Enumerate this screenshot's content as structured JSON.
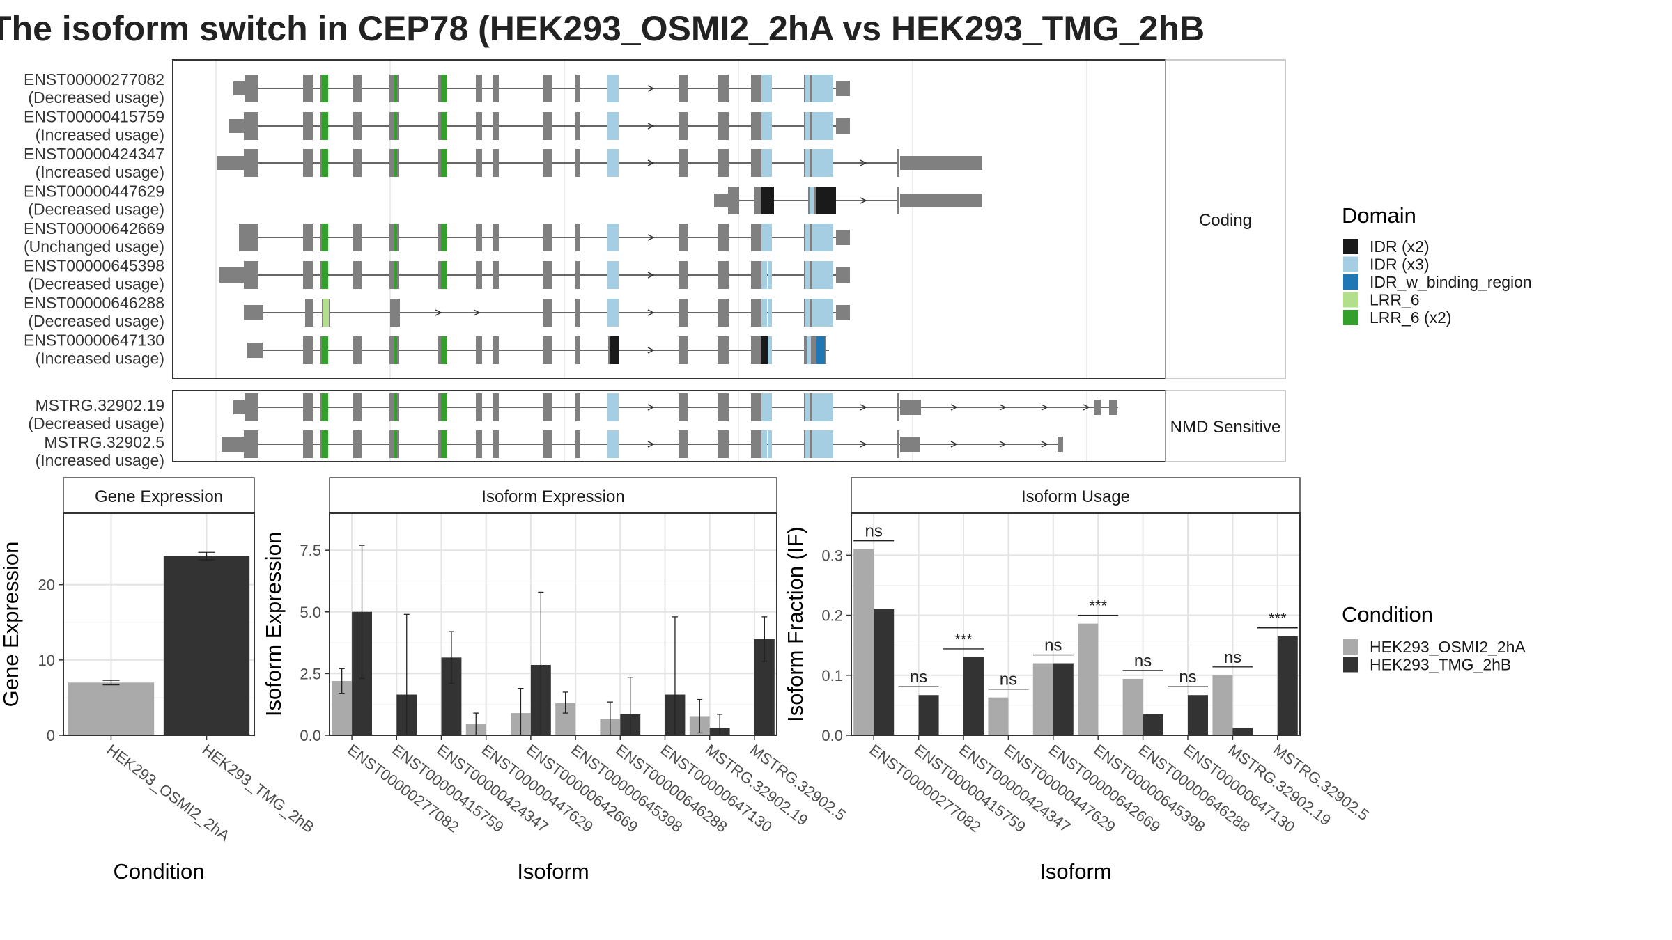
{
  "title": "The isoform switch in CEP78 (HEK293_OSMI2_2hA vs HEK293_TMG_2hB",
  "colors": {
    "cond1": "#aaaaaa",
    "cond2": "#333333",
    "exon": "#808080",
    "idr_x2": "#1a1a1a",
    "idr_x3": "#a6cee3",
    "idr_binding": "#1f78b4",
    "lrr6": "#b2df8a",
    "lrr6_x2": "#33a02c"
  },
  "transcripts": {
    "strip_coding": "Coding",
    "strip_nmd": "NMD Sensitive",
    "coding": [
      {
        "id": "ENST00000277082",
        "label": "(Decreased usage)"
      },
      {
        "id": "ENST00000415759",
        "label": "(Increased usage)"
      },
      {
        "id": "ENST00000424347",
        "label": "(Increased usage)"
      },
      {
        "id": "ENST00000447629",
        "label": "(Decreased usage)"
      },
      {
        "id": "ENST00000642669",
        "label": "(Unchanged usage)"
      },
      {
        "id": "ENST00000645398",
        "label": "(Decreased usage)"
      },
      {
        "id": "ENST00000646288",
        "label": "(Decreased usage)"
      },
      {
        "id": "ENST00000647130",
        "label": "(Increased usage)"
      }
    ],
    "nmd": [
      {
        "id": "MSTRG.32902.19",
        "label": "(Decreased usage)"
      },
      {
        "id": "MSTRG.32902.5",
        "label": "(Increased usage)"
      }
    ]
  },
  "domain_legend": {
    "title": "Domain",
    "items": [
      {
        "label": "IDR (x2)",
        "color_key": "idr_x2"
      },
      {
        "label": "IDR (x3)",
        "color_key": "idr_x3"
      },
      {
        "label": "IDR_w_binding_region",
        "color_key": "idr_binding"
      },
      {
        "label": "LRR_6",
        "color_key": "lrr6"
      },
      {
        "label": "LRR_6 (x2)",
        "color_key": "lrr6_x2"
      }
    ]
  },
  "condition_legend": {
    "title": "Condition",
    "items": [
      {
        "label": "HEK293_OSMI2_2hA",
        "color_key": "cond1"
      },
      {
        "label": "HEK293_TMG_2hB",
        "color_key": "cond2"
      }
    ]
  },
  "chart_data": [
    {
      "type": "bar",
      "title": "Gene Expression",
      "xlabel": "Condition",
      "ylabel": "Gene Expression",
      "categories": [
        "HEK293_OSMI2_2hA",
        "HEK293_TMG_2hB"
      ],
      "values": [
        7.0,
        23.8
      ],
      "errors": [
        [
          6.7,
          7.3
        ],
        [
          23.3,
          24.3
        ]
      ],
      "ylim": [
        0,
        29.5
      ],
      "yticks": [
        0,
        10,
        20
      ],
      "grid": true
    },
    {
      "type": "bar",
      "title": "Isoform Expression",
      "xlabel": "Isoform",
      "ylabel": "Isoform Expression",
      "categories": [
        "ENST00000277082",
        "ENST00000415759",
        "ENST00000424347",
        "ENST00000447629",
        "ENST00000642669",
        "ENST00000645398",
        "ENST00000646288",
        "ENST00000647130",
        "MSTRG.32902.19",
        "MSTRG.32902.5"
      ],
      "series": [
        {
          "name": "HEK293_OSMI2_2hA",
          "values": [
            2.2,
            0,
            0,
            0.45,
            0.9,
            1.3,
            0.65,
            0,
            0.75,
            0
          ],
          "errors": [
            [
              1.7,
              2.7
            ],
            null,
            null,
            [
              0.0,
              0.9
            ],
            [
              0.0,
              1.9
            ],
            [
              0.9,
              1.75
            ],
            [
              0.0,
              1.35
            ],
            null,
            [
              0.1,
              1.45
            ],
            null
          ]
        },
        {
          "name": "HEK293_TMG_2hB",
          "values": [
            5.0,
            1.65,
            3.15,
            0,
            2.85,
            0,
            0.85,
            1.65,
            0.3,
            3.9
          ],
          "errors": [
            [
              2.3,
              7.7
            ],
            [
              0.0,
              4.9
            ],
            [
              2.1,
              4.2
            ],
            null,
            [
              0.0,
              5.8
            ],
            null,
            [
              0.0,
              2.35
            ],
            [
              0.0,
              4.8
            ],
            [
              0.0,
              0.85
            ],
            [
              3.0,
              4.8
            ]
          ]
        }
      ],
      "ylim": [
        0,
        9.0
      ],
      "yticks": [
        0.0,
        2.5,
        5.0,
        7.5
      ],
      "grid": true
    },
    {
      "type": "bar",
      "title": "Isoform Usage",
      "xlabel": "Isoform",
      "ylabel": "Isoform Fraction (IF)",
      "categories": [
        "ENST00000277082",
        "ENST00000415759",
        "ENST00000424347",
        "ENST00000447629",
        "ENST00000642669",
        "ENST00000645398",
        "ENST00000646288",
        "ENST00000647130",
        "MSTRG.32902.19",
        "MSTRG.32902.5"
      ],
      "series": [
        {
          "name": "HEK293_OSMI2_2hA",
          "values": [
            0.31,
            0,
            0,
            0.063,
            0.12,
            0.186,
            0.094,
            0,
            0.1,
            0
          ]
        },
        {
          "name": "HEK293_TMG_2hB",
          "values": [
            0.21,
            0.067,
            0.13,
            0,
            0.12,
            0,
            0.035,
            0.067,
            0.012,
            0.165
          ]
        }
      ],
      "significance": [
        "ns",
        "ns",
        "***",
        "ns",
        "ns",
        "***",
        "ns",
        "ns",
        "ns",
        "***"
      ],
      "ylim": [
        0,
        0.37
      ],
      "yticks": [
        0.0,
        0.1,
        0.2,
        0.3
      ],
      "grid": true
    }
  ]
}
